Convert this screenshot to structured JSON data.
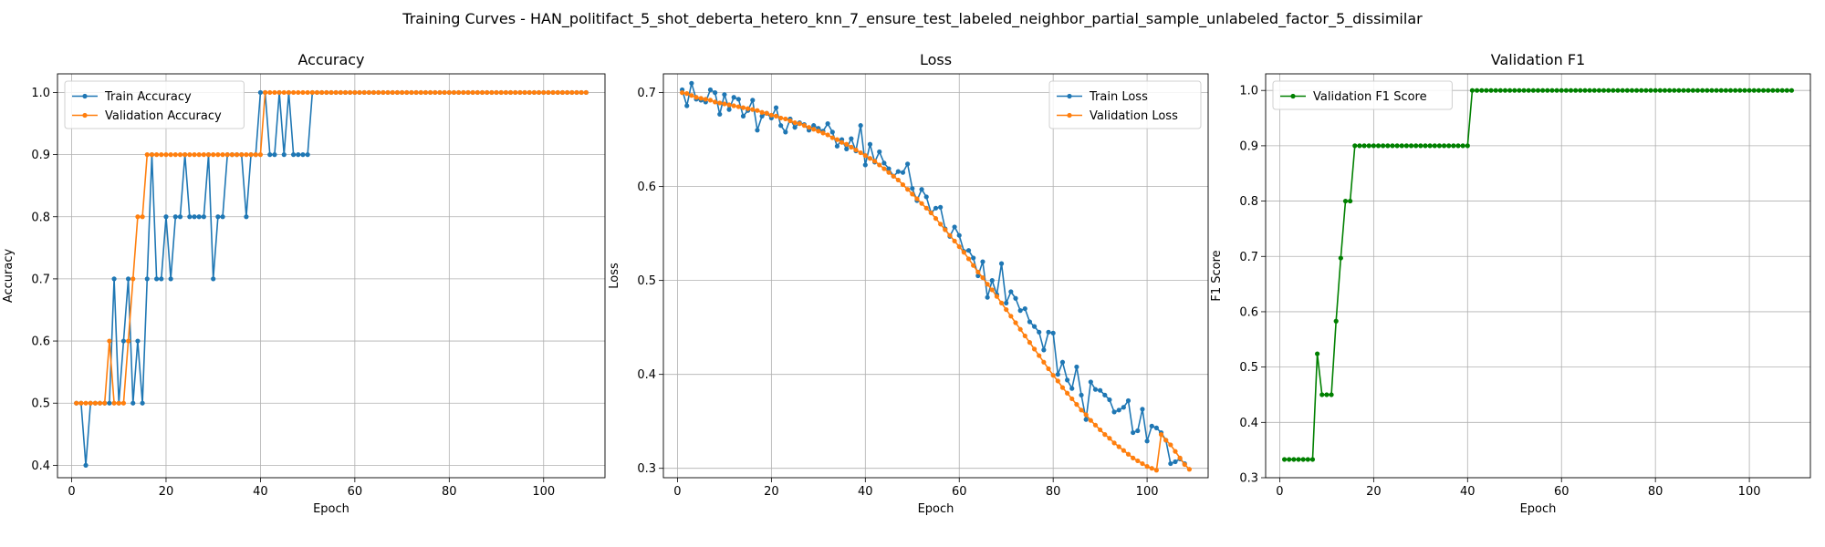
{
  "figure": {
    "suptitle": "Training Curves - HAN_politifact_5_shot_deberta_hetero_knn_7_ensure_test_labeled_neighbor_partial_sample_unlabeled_factor_5_dissimilar"
  },
  "chart_data": [
    {
      "type": "line",
      "title": "Accuracy",
      "xlabel": "Epoch",
      "ylabel": "Accuracy",
      "xlim": [
        -3,
        113
      ],
      "ylim": [
        0.38,
        1.03
      ],
      "xticks": [
        0,
        20,
        40,
        60,
        80,
        100
      ],
      "yticks": [
        0.4,
        0.5,
        0.6,
        0.7,
        0.8,
        0.9,
        1.0
      ],
      "ytick_decimals": 1,
      "grid": true,
      "legend": "upper-left",
      "x_start": 1,
      "series": [
        {
          "name": "Train Accuracy",
          "color": "#1f77b4",
          "values": [
            0.5,
            0.5,
            0.4,
            0.5,
            0.5,
            0.5,
            0.5,
            0.5,
            0.7,
            0.5,
            0.6,
            0.7,
            0.5,
            0.6,
            0.5,
            0.7,
            0.9,
            0.7,
            0.7,
            0.8,
            0.7,
            0.8,
            0.8,
            0.9,
            0.8,
            0.8,
            0.8,
            0.8,
            0.9,
            0.7,
            0.8,
            0.8,
            0.9,
            0.9,
            0.9,
            0.9,
            0.8,
            0.9,
            0.9,
            1.0,
            1.0,
            0.9,
            0.9,
            1.0,
            0.9,
            1.0,
            0.9,
            0.9,
            0.9,
            0.9,
            1.0,
            1.0,
            1.0,
            1.0,
            1.0,
            1.0,
            1.0,
            1.0,
            1.0,
            1.0,
            1.0,
            1.0,
            1.0,
            1.0,
            1.0,
            1.0,
            1.0,
            1.0,
            1.0,
            1.0,
            1.0,
            1.0,
            1.0,
            1.0,
            1.0,
            1.0,
            1.0,
            1.0,
            1.0,
            1.0,
            1.0,
            1.0,
            1.0,
            1.0,
            1.0,
            1.0,
            1.0,
            1.0,
            1.0,
            1.0,
            1.0,
            1.0,
            1.0,
            1.0,
            1.0,
            1.0,
            1.0,
            1.0,
            1.0,
            1.0,
            1.0,
            1.0,
            1.0,
            1.0,
            1.0,
            1.0,
            1.0,
            1.0,
            1.0
          ]
        },
        {
          "name": "Validation Accuracy",
          "color": "#ff7f0e",
          "values": [
            0.5,
            0.5,
            0.5,
            0.5,
            0.5,
            0.5,
            0.5,
            0.6,
            0.5,
            0.5,
            0.5,
            0.6,
            0.7,
            0.8,
            0.8,
            0.9,
            0.9,
            0.9,
            0.9,
            0.9,
            0.9,
            0.9,
            0.9,
            0.9,
            0.9,
            0.9,
            0.9,
            0.9,
            0.9,
            0.9,
            0.9,
            0.9,
            0.9,
            0.9,
            0.9,
            0.9,
            0.9,
            0.9,
            0.9,
            0.9,
            1.0,
            1.0,
            1.0,
            1.0,
            1.0,
            1.0,
            1.0,
            1.0,
            1.0,
            1.0,
            1.0,
            1.0,
            1.0,
            1.0,
            1.0,
            1.0,
            1.0,
            1.0,
            1.0,
            1.0,
            1.0,
            1.0,
            1.0,
            1.0,
            1.0,
            1.0,
            1.0,
            1.0,
            1.0,
            1.0,
            1.0,
            1.0,
            1.0,
            1.0,
            1.0,
            1.0,
            1.0,
            1.0,
            1.0,
            1.0,
            1.0,
            1.0,
            1.0,
            1.0,
            1.0,
            1.0,
            1.0,
            1.0,
            1.0,
            1.0,
            1.0,
            1.0,
            1.0,
            1.0,
            1.0,
            1.0,
            1.0,
            1.0,
            1.0,
            1.0,
            1.0,
            1.0,
            1.0,
            1.0,
            1.0,
            1.0,
            1.0,
            1.0,
            1.0
          ]
        }
      ]
    },
    {
      "type": "line",
      "title": "Loss",
      "xlabel": "Epoch",
      "ylabel": "Loss",
      "xlim": [
        -3,
        113
      ],
      "ylim": [
        0.29,
        0.72
      ],
      "xticks": [
        0,
        20,
        40,
        60,
        80,
        100
      ],
      "yticks": [
        0.3,
        0.4,
        0.5,
        0.6,
        0.7
      ],
      "ytick_decimals": 1,
      "grid": true,
      "legend": "upper-right",
      "x_start": 1,
      "series": [
        {
          "name": "Train Loss",
          "color": "#1f77b4",
          "values": [
            0.703,
            0.686,
            0.71,
            0.693,
            0.692,
            0.69,
            0.703,
            0.7,
            0.677,
            0.698,
            0.682,
            0.695,
            0.693,
            0.675,
            0.681,
            0.692,
            0.66,
            0.675,
            0.678,
            0.673,
            0.684,
            0.665,
            0.658,
            0.672,
            0.663,
            0.668,
            0.666,
            0.66,
            0.665,
            0.662,
            0.659,
            0.667,
            0.658,
            0.643,
            0.65,
            0.64,
            0.651,
            0.638,
            0.665,
            0.623,
            0.645,
            0.626,
            0.637,
            0.625,
            0.619,
            0.611,
            0.616,
            0.615,
            0.624,
            0.598,
            0.585,
            0.597,
            0.589,
            0.572,
            0.577,
            0.578,
            0.555,
            0.547,
            0.557,
            0.548,
            0.531,
            0.532,
            0.524,
            0.505,
            0.52,
            0.482,
            0.5,
            0.485,
            0.518,
            0.476,
            0.488,
            0.481,
            0.468,
            0.47,
            0.456,
            0.451,
            0.445,
            0.426,
            0.445,
            0.444,
            0.4,
            0.413,
            0.394,
            0.385,
            0.408,
            0.378,
            0.352,
            0.392,
            0.384,
            0.383,
            0.378,
            0.373,
            0.36,
            0.362,
            0.365,
            0.372,
            0.338,
            0.34,
            0.363,
            0.329,
            0.345,
            0.343,
            0.338,
            0.33,
            0.305,
            0.307,
            0.31,
            0.305
          ]
        },
        {
          "name": "Validation Loss",
          "color": "#ff7f0e",
          "values": [
            0.7,
            0.699,
            0.697,
            0.695,
            0.694,
            0.693,
            0.692,
            0.69,
            0.689,
            0.688,
            0.687,
            0.686,
            0.685,
            0.684,
            0.683,
            0.682,
            0.681,
            0.679,
            0.678,
            0.676,
            0.675,
            0.673,
            0.672,
            0.67,
            0.668,
            0.667,
            0.665,
            0.663,
            0.661,
            0.659,
            0.657,
            0.655,
            0.652,
            0.65,
            0.647,
            0.645,
            0.642,
            0.639,
            0.636,
            0.633,
            0.63,
            0.627,
            0.623,
            0.619,
            0.615,
            0.611,
            0.607,
            0.602,
            0.597,
            0.592,
            0.587,
            0.582,
            0.577,
            0.572,
            0.566,
            0.56,
            0.554,
            0.548,
            0.542,
            0.536,
            0.53,
            0.523,
            0.516,
            0.509,
            0.503,
            0.496,
            0.49,
            0.483,
            0.476,
            0.469,
            0.462,
            0.455,
            0.448,
            0.441,
            0.434,
            0.427,
            0.42,
            0.413,
            0.406,
            0.399,
            0.393,
            0.386,
            0.38,
            0.374,
            0.368,
            0.362,
            0.357,
            0.351,
            0.346,
            0.341,
            0.336,
            0.332,
            0.327,
            0.323,
            0.319,
            0.315,
            0.311,
            0.308,
            0.305,
            0.302,
            0.3,
            0.298,
            0.336,
            0.33,
            0.325,
            0.318,
            0.311,
            0.304,
            0.299
          ]
        }
      ]
    },
    {
      "type": "line",
      "title": "Validation F1",
      "xlabel": "Epoch",
      "ylabel": "F1 Score",
      "xlim": [
        -3,
        113
      ],
      "ylim": [
        0.3,
        1.03
      ],
      "xticks": [
        0,
        20,
        40,
        60,
        80,
        100
      ],
      "yticks": [
        0.3,
        0.4,
        0.5,
        0.6,
        0.7,
        0.8,
        0.9,
        1.0
      ],
      "ytick_decimals": 1,
      "grid": true,
      "legend": "upper-left",
      "x_start": 1,
      "series": [
        {
          "name": "Validation F1 Score",
          "color": "#008000",
          "values": [
            0.333,
            0.333,
            0.333,
            0.333,
            0.333,
            0.333,
            0.333,
            0.524,
            0.45,
            0.45,
            0.45,
            0.583,
            0.697,
            0.8,
            0.8,
            0.9,
            0.9,
            0.9,
            0.9,
            0.9,
            0.9,
            0.9,
            0.9,
            0.9,
            0.9,
            0.9,
            0.9,
            0.9,
            0.9,
            0.9,
            0.9,
            0.9,
            0.9,
            0.9,
            0.9,
            0.9,
            0.9,
            0.9,
            0.9,
            0.9,
            1.0,
            1.0,
            1.0,
            1.0,
            1.0,
            1.0,
            1.0,
            1.0,
            1.0,
            1.0,
            1.0,
            1.0,
            1.0,
            1.0,
            1.0,
            1.0,
            1.0,
            1.0,
            1.0,
            1.0,
            1.0,
            1.0,
            1.0,
            1.0,
            1.0,
            1.0,
            1.0,
            1.0,
            1.0,
            1.0,
            1.0,
            1.0,
            1.0,
            1.0,
            1.0,
            1.0,
            1.0,
            1.0,
            1.0,
            1.0,
            1.0,
            1.0,
            1.0,
            1.0,
            1.0,
            1.0,
            1.0,
            1.0,
            1.0,
            1.0,
            1.0,
            1.0,
            1.0,
            1.0,
            1.0,
            1.0,
            1.0,
            1.0,
            1.0,
            1.0,
            1.0,
            1.0,
            1.0,
            1.0,
            1.0,
            1.0,
            1.0,
            1.0,
            1.0
          ]
        }
      ]
    }
  ]
}
